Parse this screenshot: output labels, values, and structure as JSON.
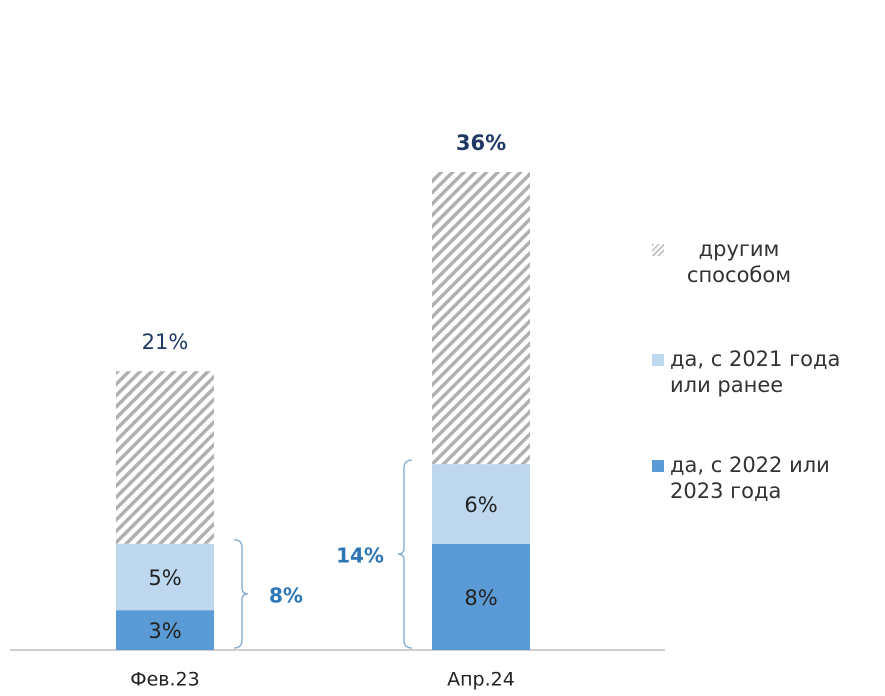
{
  "chart_data": {
    "type": "stacked_bar",
    "categories": [
      "Фев.23",
      "Апр.24"
    ],
    "series": [
      {
        "name": "да, с 2022 или 2023 года",
        "color": "#5b9bd5",
        "values": [
          3,
          8
        ],
        "value_labels": [
          "3%",
          "8%"
        ]
      },
      {
        "name": "да, с 2021 года или ранее",
        "color": "#bdd7ee",
        "values": [
          5,
          6
        ],
        "value_labels": [
          "5%",
          "6%"
        ]
      },
      {
        "name": "другим способом",
        "color": "#a6a6a6",
        "pattern": "hatch",
        "values": [
          13,
          22
        ]
      }
    ],
    "totals": {
      "values": [
        21,
        36
      ],
      "value_labels": [
        "21%",
        "36%"
      ]
    },
    "bracket_totals": {
      "values": [
        8,
        14
      ],
      "value_labels": [
        "8%",
        "14%"
      ]
    }
  }
}
